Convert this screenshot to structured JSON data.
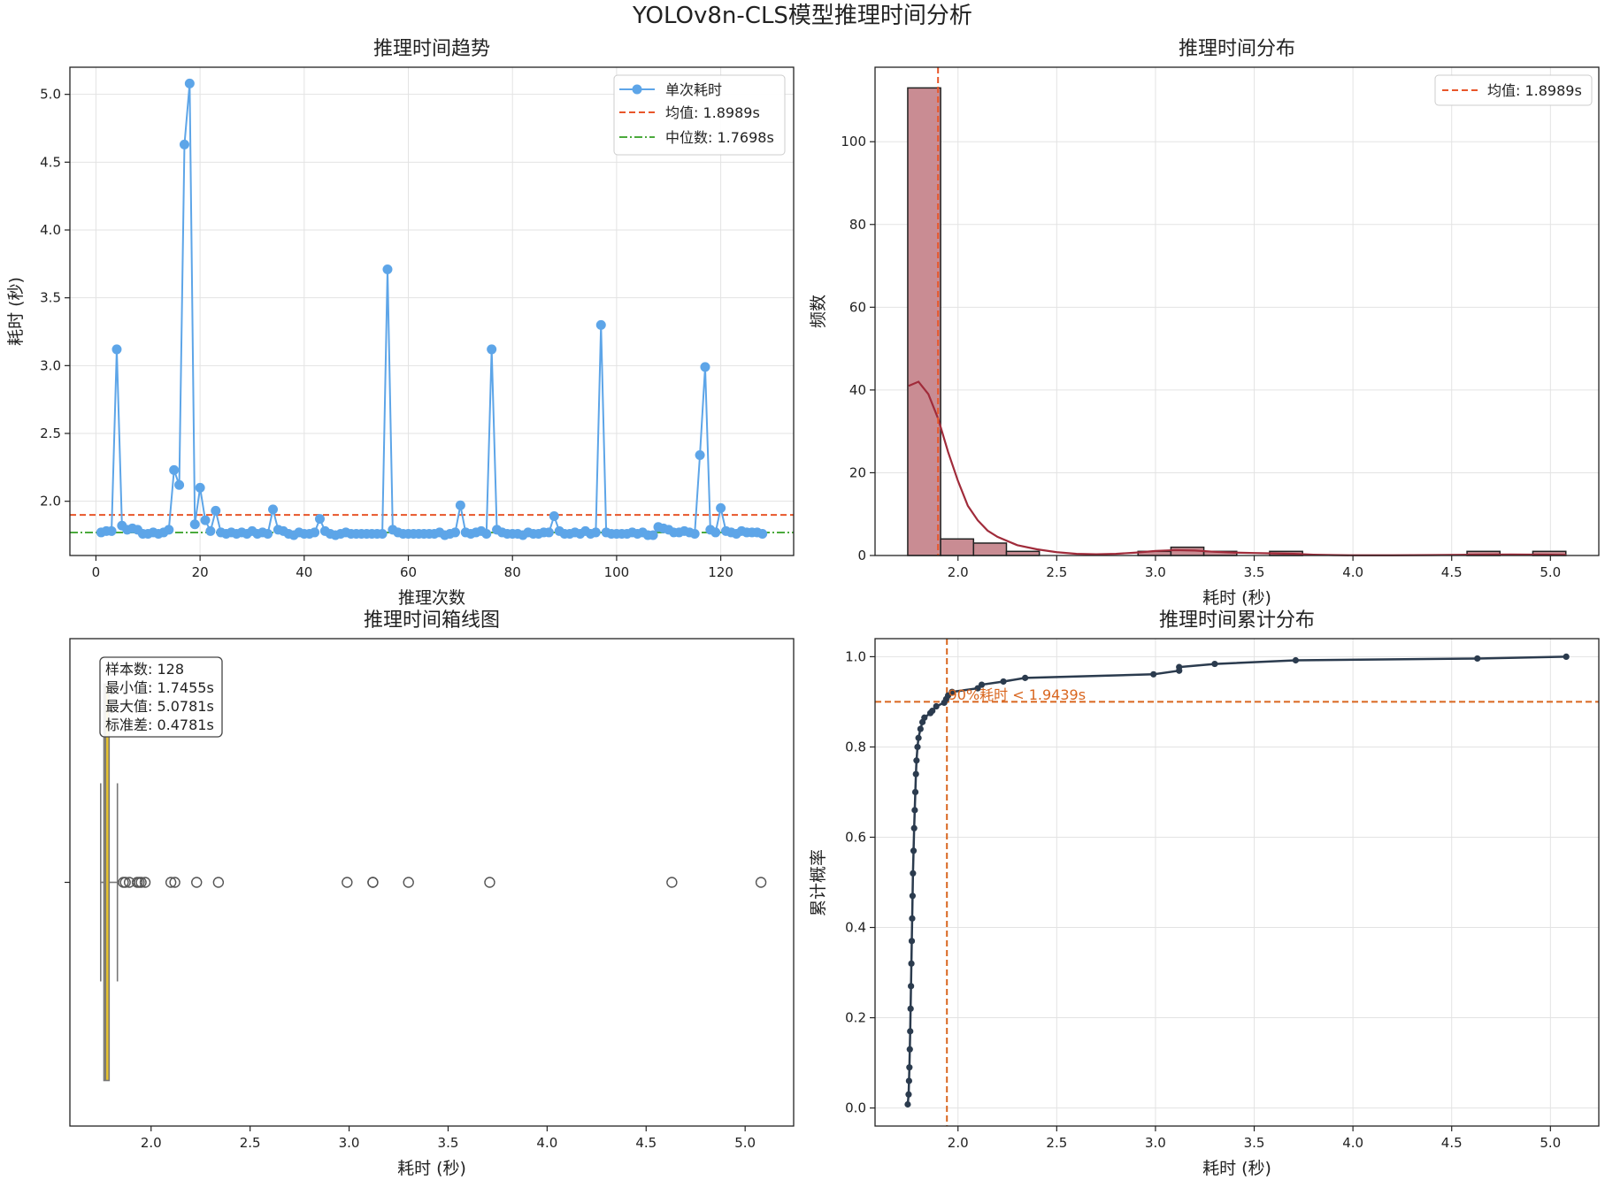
{
  "figure": {
    "title": "YOLOv8n-CLS模型推理时间分析"
  },
  "chart_data": [
    {
      "id": "trend",
      "type": "line",
      "title": "推理时间趋势",
      "xlabel": "推理次数",
      "ylabel": "耗时 (秒)",
      "xlim": [
        -5,
        134
      ],
      "ylim": [
        1.6,
        5.2
      ],
      "xticks": [
        0,
        20,
        40,
        60,
        80,
        100,
        120
      ],
      "yticks": [
        2.0,
        2.5,
        3.0,
        3.5,
        4.0,
        4.5,
        5.0
      ],
      "grid": true,
      "legend_position": "top-right",
      "series": [
        {
          "name": "单次耗时",
          "color": "#5DA5E8",
          "x_start": 1,
          "values": [
            1.77,
            1.78,
            1.78,
            3.12,
            1.82,
            1.79,
            1.8,
            1.79,
            1.76,
            1.76,
            1.77,
            1.76,
            1.77,
            1.79,
            2.23,
            2.12,
            4.63,
            5.08,
            1.83,
            2.1,
            1.86,
            1.78,
            1.93,
            1.77,
            1.76,
            1.77,
            1.76,
            1.77,
            1.76,
            1.78,
            1.76,
            1.77,
            1.76,
            1.94,
            1.79,
            1.78,
            1.76,
            1.75,
            1.77,
            1.76,
            1.76,
            1.77,
            1.87,
            1.78,
            1.76,
            1.75,
            1.76,
            1.77,
            1.76,
            1.76,
            1.76,
            1.76,
            1.76,
            1.76,
            1.76,
            3.71,
            1.79,
            1.77,
            1.76,
            1.76,
            1.76,
            1.76,
            1.76,
            1.76,
            1.76,
            1.77,
            1.75,
            1.76,
            1.77,
            1.97,
            1.77,
            1.76,
            1.77,
            1.78,
            1.76,
            3.12,
            1.79,
            1.77,
            1.76,
            1.76,
            1.76,
            1.75,
            1.77,
            1.76,
            1.76,
            1.77,
            1.77,
            1.89,
            1.78,
            1.76,
            1.76,
            1.77,
            1.76,
            1.78,
            1.76,
            1.77,
            3.3,
            1.77,
            1.76,
            1.76,
            1.76,
            1.76,
            1.77,
            1.76,
            1.77,
            1.75,
            1.75,
            1.81,
            1.8,
            1.79,
            1.77,
            1.77,
            1.78,
            1.77,
            1.76,
            2.34,
            2.99,
            1.79,
            1.77,
            1.95,
            1.78,
            1.77,
            1.76,
            1.78,
            1.77,
            1.77,
            1.77,
            1.76
          ]
        }
      ],
      "hlines": [
        {
          "name": "均值: 1.8989s",
          "y": 1.8989,
          "color": "#E8562A",
          "style": "dashed"
        },
        {
          "name": "中位数: 1.7698s",
          "y": 1.7698,
          "color": "#4BAA3C",
          "style": "dashdot"
        }
      ]
    },
    {
      "id": "hist",
      "type": "bar",
      "title": "推理时间分布",
      "xlabel": "耗时 (秒)",
      "ylabel": "频数",
      "xlim": [
        1.58,
        5.245
      ],
      "ylim": [
        0,
        118
      ],
      "xticks": [
        2.0,
        2.5,
        3.0,
        3.5,
        4.0,
        4.5,
        5.0
      ],
      "yticks": [
        0,
        20,
        40,
        60,
        80,
        100
      ],
      "grid": true,
      "legend_position": "top-right",
      "bar_color": "#C98C93",
      "edge_color": "#222222",
      "bin_edges": [
        1.7455,
        1.9121,
        2.0787,
        2.2453,
        2.4119,
        2.5785,
        2.7451,
        2.9117,
        3.0783,
        3.2449,
        3.4115,
        3.5781,
        3.7447,
        3.9113,
        4.0779,
        4.2445,
        4.4111,
        4.5777,
        4.7443,
        4.9109,
        5.0781
      ],
      "values": [
        113,
        4,
        3,
        1,
        0,
        0,
        0,
        1,
        2,
        1,
        0,
        1,
        0,
        0,
        0,
        0,
        0,
        1,
        0,
        1
      ],
      "kde": {
        "color": "#A02B3A",
        "x": [
          1.75,
          1.8,
          1.85,
          1.9,
          1.95,
          2.0,
          2.05,
          2.1,
          2.15,
          2.2,
          2.3,
          2.4,
          2.5,
          2.6,
          2.7,
          2.8,
          2.9,
          3.0,
          3.1,
          3.2,
          3.3,
          3.4,
          3.5,
          3.6,
          3.7,
          3.8,
          3.9,
          4.0,
          4.2,
          4.4,
          4.6,
          4.8,
          5.0,
          5.08
        ],
        "y": [
          41,
          42,
          39,
          33,
          25,
          18,
          12,
          8.5,
          6,
          4.5,
          2.5,
          1.5,
          0.8,
          0.4,
          0.3,
          0.4,
          0.7,
          1.1,
          1.3,
          1.2,
          0.9,
          0.7,
          0.6,
          0.5,
          0.4,
          0.2,
          0.1,
          0.05,
          0.05,
          0.1,
          0.2,
          0.25,
          0.2,
          0.15
        ]
      },
      "vlines": [
        {
          "name": "均值: 1.8989s",
          "x": 1.8989,
          "color": "#E8562A",
          "style": "dashed"
        }
      ]
    },
    {
      "id": "box",
      "type": "box",
      "title": "推理时间箱线图",
      "xlabel": "耗时 (秒)",
      "xlim": [
        1.59,
        5.245
      ],
      "xticks": [
        2.0,
        2.5,
        3.0,
        3.5,
        4.0,
        4.5,
        5.0
      ],
      "box": {
        "q1": 1.762,
        "median": 1.7698,
        "q3": 1.788,
        "whisker_low": 1.7455,
        "whisker_high": 1.83,
        "color": "#E8C32E"
      },
      "outliers": [
        1.86,
        1.87,
        1.89,
        1.93,
        1.94,
        1.95,
        1.97,
        2.1,
        2.12,
        2.23,
        2.34,
        2.99,
        3.12,
        3.12,
        3.3,
        3.71,
        4.63,
        5.08
      ],
      "stats": {
        "count_label": "样本数: 128",
        "min_label": "最小值: 1.7455s",
        "max_label": "最大值: 5.0781s",
        "std_label": "标准差: 0.4781s"
      }
    },
    {
      "id": "cdf",
      "type": "line",
      "title": "推理时间累计分布",
      "xlabel": "耗时 (秒)",
      "ylabel": "累计概率",
      "xlim": [
        1.58,
        5.245
      ],
      "ylim": [
        -0.04,
        1.04
      ],
      "xticks": [
        2.0,
        2.5,
        3.0,
        3.5,
        4.0,
        4.5,
        5.0
      ],
      "yticks": [
        0.0,
        0.2,
        0.4,
        0.6,
        0.8,
        1.0
      ],
      "grid": true,
      "line_color": "#2B3B4E",
      "points": [
        [
          1.7455,
          0.008
        ],
        [
          1.75,
          0.03
        ],
        [
          1.752,
          0.06
        ],
        [
          1.754,
          0.09
        ],
        [
          1.756,
          0.13
        ],
        [
          1.758,
          0.17
        ],
        [
          1.76,
          0.22
        ],
        [
          1.762,
          0.27
        ],
        [
          1.764,
          0.32
        ],
        [
          1.766,
          0.37
        ],
        [
          1.768,
          0.42
        ],
        [
          1.77,
          0.47
        ],
        [
          1.772,
          0.52
        ],
        [
          1.775,
          0.57
        ],
        [
          1.778,
          0.62
        ],
        [
          1.781,
          0.66
        ],
        [
          1.784,
          0.7
        ],
        [
          1.787,
          0.74
        ],
        [
          1.79,
          0.77
        ],
        [
          1.795,
          0.8
        ],
        [
          1.8,
          0.82
        ],
        [
          1.81,
          0.84
        ],
        [
          1.82,
          0.855
        ],
        [
          1.83,
          0.865
        ],
        [
          1.86,
          0.875
        ],
        [
          1.87,
          0.88
        ],
        [
          1.89,
          0.89
        ],
        [
          1.93,
          0.898
        ],
        [
          1.94,
          0.906
        ],
        [
          1.95,
          0.914
        ],
        [
          1.97,
          0.922
        ],
        [
          2.1,
          0.93
        ],
        [
          2.12,
          0.938
        ],
        [
          2.23,
          0.945
        ],
        [
          2.34,
          0.953
        ],
        [
          2.99,
          0.961
        ],
        [
          3.12,
          0.969
        ],
        [
          3.12,
          0.977
        ],
        [
          3.3,
          0.984
        ],
        [
          3.71,
          0.992
        ],
        [
          4.63,
          0.996
        ],
        [
          5.08,
          1.0
        ]
      ],
      "hline": {
        "y": 0.9,
        "color": "#D9661F",
        "style": "dashed"
      },
      "vline": {
        "x": 1.9439,
        "color": "#D9661F",
        "style": "dashed"
      },
      "annotation": {
        "text": "90%耗时 < 1.9439s",
        "x": 1.95,
        "y": 0.905,
        "color": "#D9661F"
      }
    }
  ]
}
